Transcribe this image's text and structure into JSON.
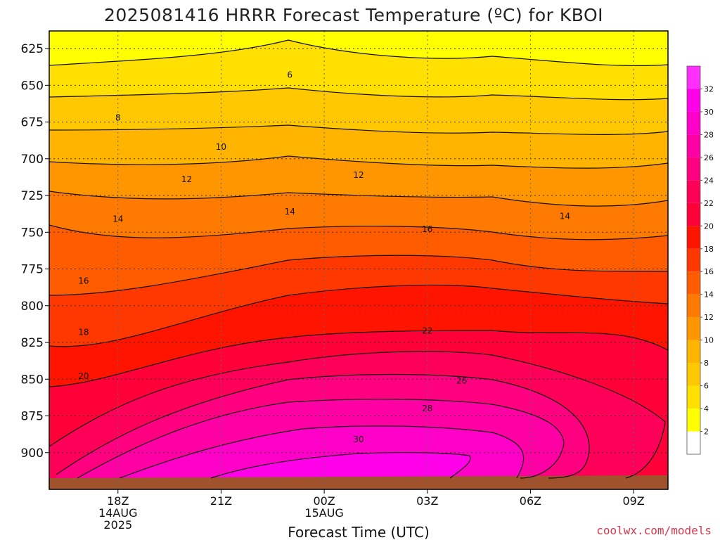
{
  "chart_data": {
    "type": "contour",
    "title": "2025081416 HRRR Forecast Temperature (ºC) for KBOI",
    "xlabel": "Forecast Time (UTC)",
    "ylabel": "",
    "x_ticks": [
      {
        "hour": 2,
        "lines": [
          "18Z",
          "14AUG",
          "2025"
        ]
      },
      {
        "hour": 5,
        "lines": [
          "21Z"
        ]
      },
      {
        "hour": 8,
        "lines": [
          "00Z",
          "15AUG"
        ]
      },
      {
        "hour": 11,
        "lines": [
          "03Z"
        ]
      },
      {
        "hour": 14,
        "lines": [
          "06Z"
        ]
      },
      {
        "hour": 17,
        "lines": [
          "09Z"
        ]
      }
    ],
    "x_range_hours": [
      0,
      18
    ],
    "y_ticks": [
      625,
      650,
      675,
      700,
      725,
      750,
      775,
      800,
      825,
      850,
      875,
      900
    ],
    "y_range_hpa": [
      613,
      925
    ],
    "grid": true,
    "colorbar": {
      "levels": [
        2,
        4,
        6,
        8,
        10,
        12,
        14,
        16,
        18,
        20,
        22,
        24,
        26,
        28,
        30,
        32
      ],
      "colors": [
        "#ffffff",
        "#ffff00",
        "#ffe000",
        "#ffc800",
        "#ffb400",
        "#ff9600",
        "#ff7a00",
        "#ff5c00",
        "#ff3800",
        "#ff1400",
        "#ff0038",
        "#ff0058",
        "#ff0080",
        "#ff00a4",
        "#ff00c8",
        "#ff00e8",
        "#ff30ff"
      ]
    },
    "contour_labels": [
      {
        "hour": 7,
        "hpa": 643,
        "value": "6"
      },
      {
        "hour": 2,
        "hpa": 672,
        "value": "8"
      },
      {
        "hour": 5,
        "hpa": 692,
        "value": "10"
      },
      {
        "hour": 4,
        "hpa": 714,
        "value": "12"
      },
      {
        "hour": 9,
        "hpa": 711,
        "value": "12"
      },
      {
        "hour": 2,
        "hpa": 741,
        "value": "14"
      },
      {
        "hour": 7,
        "hpa": 736,
        "value": "14"
      },
      {
        "hour": 15,
        "hpa": 739,
        "value": "14"
      },
      {
        "hour": 1,
        "hpa": 783,
        "value": "16"
      },
      {
        "hour": 11,
        "hpa": 748,
        "value": "16"
      },
      {
        "hour": 1,
        "hpa": 818,
        "value": "18"
      },
      {
        "hour": 11,
        "hpa": 817,
        "value": "22"
      },
      {
        "hour": 1,
        "hpa": 848,
        "value": "20"
      },
      {
        "hour": 12,
        "hpa": 851,
        "value": "26"
      },
      {
        "hour": 11,
        "hpa": 870,
        "value": "28"
      },
      {
        "hour": 9,
        "hpa": 891,
        "value": "30"
      }
    ]
  },
  "credit": "coolwx.com/models"
}
